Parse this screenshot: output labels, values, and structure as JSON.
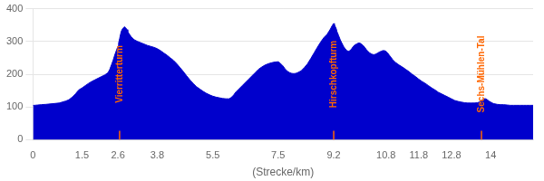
{
  "chart_data": {
    "type": "area",
    "xlabel": "(Strecke/km)",
    "color": "#0000cc",
    "grid": "y",
    "xlim": [
      0,
      15.3
    ],
    "ylim": [
      0,
      400
    ],
    "xticks": [
      0,
      1.5,
      2.6,
      3.8,
      5.5,
      7.5,
      9.2,
      10.8,
      11.8,
      12.8,
      14
    ],
    "yticks": [
      0,
      100,
      200,
      300,
      400
    ],
    "annotations": [
      {
        "x": 2.65,
        "label": "Vierritterturm",
        "color": "#ff6600"
      },
      {
        "x": 9.2,
        "label": "Hirschkopfturm",
        "color": "#ff6600"
      },
      {
        "x": 13.72,
        "label": "Sechs-Mühlen-Tal",
        "color": "#ff6600"
      }
    ],
    "x": [
      0.0,
      0.05,
      0.15,
      0.25,
      0.4,
      0.6,
      0.8,
      0.9,
      1.0,
      1.1,
      1.2,
      1.3,
      1.4,
      1.5,
      1.6,
      1.7,
      1.8,
      1.9,
      2.0,
      2.1,
      2.2,
      2.3,
      2.35,
      2.4,
      2.45,
      2.5,
      2.55,
      2.6,
      2.62,
      2.65,
      2.68,
      2.7,
      2.72,
      2.75,
      2.78,
      2.8,
      2.82,
      2.85,
      2.88,
      2.9,
      2.95,
      3.0,
      3.1,
      3.2,
      3.3,
      3.4,
      3.5,
      3.6,
      3.7,
      3.8,
      3.9,
      4.0,
      4.1,
      4.2,
      4.3,
      4.4,
      4.5,
      4.6,
      4.7,
      4.8,
      4.9,
      5.0,
      5.1,
      5.2,
      5.3,
      5.4,
      5.5,
      5.6,
      5.7,
      5.8,
      5.9,
      6.0,
      6.05,
      6.1,
      6.15,
      6.2,
      6.3,
      6.4,
      6.5,
      6.6,
      6.7,
      6.8,
      6.9,
      7.0,
      7.1,
      7.2,
      7.3,
      7.4,
      7.5,
      7.55,
      7.6,
      7.65,
      7.7,
      7.75,
      7.8,
      7.85,
      7.9,
      7.95,
      8.0,
      8.05,
      8.1,
      8.2,
      8.3,
      8.4,
      8.5,
      8.6,
      8.7,
      8.8,
      8.9,
      9.0,
      9.05,
      9.1,
      9.12,
      9.15,
      9.17,
      9.2,
      9.22,
      9.25,
      9.28,
      9.3,
      9.35,
      9.4,
      9.45,
      9.5,
      9.55,
      9.6,
      9.65,
      9.7,
      9.75,
      9.8,
      9.85,
      9.9,
      9.95,
      10.0,
      10.05,
      10.1,
      10.15,
      10.2,
      10.25,
      10.3,
      10.35,
      10.4,
      10.45,
      10.5,
      10.55,
      10.6,
      10.65,
      10.7,
      10.75,
      10.8,
      10.85,
      10.9,
      10.95,
      11.0,
      11.05,
      11.1,
      11.15,
      11.2,
      11.3,
      11.4,
      11.5,
      11.6,
      11.7,
      11.8,
      11.9,
      12.0,
      12.1,
      12.2,
      12.3,
      12.4,
      12.5,
      12.6,
      12.7,
      12.8,
      12.9,
      13.0,
      13.1,
      13.2,
      13.3,
      13.4,
      13.5,
      13.6,
      13.65,
      13.7,
      13.75,
      13.8,
      13.85,
      13.9,
      13.95,
      14.0,
      14.05,
      14.1,
      14.2,
      14.3,
      14.4,
      14.5,
      14.6,
      14.7,
      14.8,
      14.9,
      15.0,
      15.1,
      15.2,
      15.3
    ],
    "values": [
      105,
      105,
      106,
      107,
      108,
      110,
      112,
      115,
      118,
      122,
      130,
      140,
      152,
      158,
      165,
      172,
      178,
      183,
      188,
      193,
      198,
      205,
      215,
      228,
      242,
      258,
      272,
      285,
      295,
      308,
      322,
      330,
      335,
      340,
      343,
      345,
      343,
      340,
      336,
      330,
      322,
      315,
      305,
      300,
      296,
      292,
      288,
      285,
      282,
      278,
      272,
      265,
      258,
      250,
      242,
      232,
      220,
      208,
      195,
      183,
      172,
      162,
      155,
      148,
      142,
      137,
      133,
      130,
      128,
      126,
      125,
      125,
      128,
      132,
      138,
      145,
      155,
      165,
      175,
      185,
      195,
      205,
      215,
      222,
      228,
      232,
      235,
      237,
      238,
      235,
      230,
      225,
      218,
      212,
      208,
      205,
      203,
      202,
      202,
      203,
      205,
      210,
      220,
      232,
      248,
      265,
      282,
      298,
      312,
      322,
      330,
      338,
      342,
      348,
      352,
      355,
      352,
      345,
      338,
      330,
      318,
      305,
      295,
      285,
      278,
      272,
      270,
      272,
      278,
      285,
      290,
      292,
      295,
      295,
      292,
      288,
      282,
      275,
      270,
      265,
      262,
      260,
      260,
      262,
      265,
      268,
      270,
      272,
      272,
      270,
      265,
      258,
      252,
      245,
      240,
      235,
      232,
      228,
      222,
      215,
      208,
      200,
      193,
      185,
      178,
      172,
      165,
      158,
      152,
      145,
      140,
      135,
      130,
      125,
      120,
      117,
      115,
      113,
      112,
      112,
      112,
      113,
      115,
      118,
      122,
      125,
      125,
      122,
      118,
      115,
      112,
      110,
      108,
      107,
      107,
      106,
      105,
      105,
      105,
      105,
      105,
      105,
      105,
      105
    ]
  }
}
